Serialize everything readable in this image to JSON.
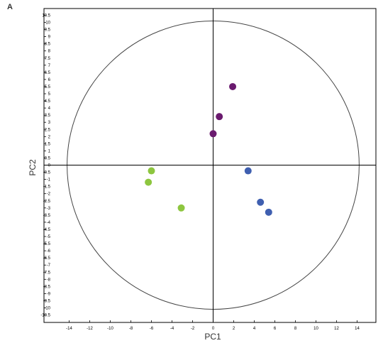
{
  "panel_label": "A",
  "colors": {
    "frame": "#000000",
    "circle": "#444444",
    "group_green": "#8dc63f",
    "group_purple": "#6a1a6e",
    "group_blue": "#3f5fb0"
  },
  "chart_data": {
    "type": "scatter",
    "title": "",
    "xlabel": "PC1",
    "ylabel": "PC2",
    "xlim": [
      -15,
      16
    ],
    "ylim": [
      -11,
      11
    ],
    "x_ticks": [
      -14,
      -12,
      -10,
      -8,
      -6,
      -4,
      -2,
      0,
      2,
      4,
      6,
      8,
      10,
      12,
      14
    ],
    "y_ticks": [
      10.5,
      10,
      9.5,
      9,
      8.5,
      8,
      7.5,
      7,
      6.5,
      6,
      5.5,
      5,
      4.5,
      4,
      3.5,
      3,
      2.5,
      2,
      1.5,
      1,
      0.5,
      0,
      -0.5,
      -1,
      -1.5,
      -2,
      -2.5,
      -3,
      -3.5,
      -4,
      -4.5,
      -5,
      -5.5,
      -6,
      -6.5,
      -7,
      -7.5,
      -8,
      -8.5,
      -9,
      -9.5,
      -10,
      -10.5
    ],
    "y_tick_labels": [
      "10.5",
      "10",
      "9.5",
      "9",
      "8.5",
      "8",
      "7.5",
      "7",
      "6.5",
      "6",
      "5.5",
      "5",
      "4.5",
      "4",
      "3.5",
      "3",
      "2.5",
      "2",
      "1.5",
      "1",
      "0.5",
      "0",
      "-0.5",
      "-1",
      "-1.5",
      "-2",
      "-2.5",
      "-3",
      "-3.5",
      "-4",
      "-4.5",
      "-5",
      "-5.5",
      "-6",
      "-6.5",
      "-7",
      "-7.5",
      "-8",
      "-8.5",
      "-9",
      "-9.5",
      "-10",
      "-10.5"
    ],
    "confidence_ellipse": {
      "rx": 14.2,
      "ry": 10.1
    },
    "series": [
      {
        "color_key": "group_purple",
        "points": [
          [
            1.9,
            5.5
          ],
          [
            0.6,
            3.4
          ],
          [
            0.0,
            2.2
          ]
        ]
      },
      {
        "color_key": "group_green",
        "points": [
          [
            -6.0,
            -0.4
          ],
          [
            -6.3,
            -1.2
          ],
          [
            -3.1,
            -3.0
          ]
        ]
      },
      {
        "color_key": "group_blue",
        "points": [
          [
            3.4,
            -0.4
          ],
          [
            4.6,
            -2.6
          ],
          [
            5.4,
            -3.3
          ]
        ]
      }
    ],
    "grid": false,
    "legend": "none"
  }
}
